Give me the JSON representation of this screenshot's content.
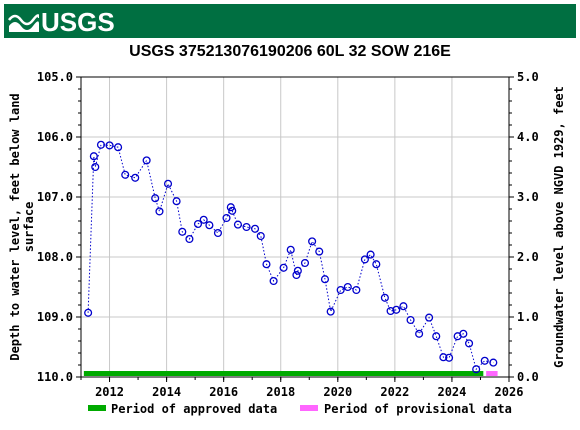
{
  "header": {
    "logo_text": "USGS",
    "background_color": "#006f41"
  },
  "chart_data": {
    "type": "scatter",
    "title": "USGS 375213076190206 60L 32 SOW 216E",
    "ylabel_lines": [
      "Depth to water level, feet below land",
      "surface"
    ],
    "ylabel_right": "Groundwater level above NGVD 1929, feet",
    "xlim": [
      2011.0,
      2026.0
    ],
    "ylim": [
      105.0,
      110.0
    ],
    "y_inverted": true,
    "right_ylim": [
      0.0,
      5.0
    ],
    "x_ticks": [
      "2012",
      "2014",
      "2016",
      "2018",
      "2020",
      "2022",
      "2024",
      "2026"
    ],
    "y_ticks": [
      "105.0",
      "106.0",
      "107.0",
      "108.0",
      "109.0",
      "110.0"
    ],
    "right_y_ticks": [
      "5.0",
      "4.0",
      "3.0",
      "2.0",
      "1.0",
      "0.0"
    ],
    "grid": true,
    "series": [
      {
        "name": "Depth to water level",
        "color": "#0000cc",
        "marker": "circle",
        "line": "dotted",
        "x": [
          2011.25,
          2011.45,
          2011.5,
          2011.7,
          2012.0,
          2012.3,
          2012.55,
          2012.9,
          2013.3,
          2013.6,
          2013.75,
          2014.05,
          2014.35,
          2014.55,
          2014.8,
          2015.1,
          2015.3,
          2015.5,
          2015.8,
          2016.1,
          2016.25,
          2016.3,
          2016.5,
          2016.8,
          2017.1,
          2017.3,
          2017.5,
          2017.75,
          2018.1,
          2018.35,
          2018.55,
          2018.6,
          2018.85,
          2019.1,
          2019.35,
          2019.55,
          2019.75,
          2020.1,
          2020.35,
          2020.65,
          2020.95,
          2021.15,
          2021.35,
          2021.65,
          2021.85,
          2022.05,
          2022.3,
          2022.55,
          2022.85,
          2023.2,
          2023.45,
          2023.7,
          2023.9,
          2024.2,
          2024.4,
          2024.6,
          2024.85,
          2025.15,
          2025.45
        ],
        "values": [
          108.93,
          106.32,
          106.5,
          106.13,
          106.14,
          106.17,
          106.63,
          106.68,
          106.39,
          107.02,
          107.24,
          106.78,
          107.07,
          107.58,
          107.7,
          107.45,
          107.38,
          107.47,
          107.6,
          107.35,
          107.17,
          107.23,
          107.46,
          107.5,
          107.53,
          107.65,
          108.12,
          108.4,
          108.18,
          107.88,
          108.3,
          108.23,
          108.1,
          107.74,
          107.91,
          108.37,
          108.91,
          108.55,
          108.5,
          108.55,
          108.04,
          107.96,
          108.12,
          108.68,
          108.9,
          108.88,
          108.82,
          109.05,
          109.28,
          109.01,
          109.32,
          109.67,
          109.68,
          109.32,
          109.28,
          109.44,
          109.87,
          109.73,
          109.76
        ]
      }
    ],
    "legend": {
      "placement": "bottom",
      "items": [
        {
          "label": "Period of approved data",
          "color": "#00aa00"
        },
        {
          "label": "Period of provisional data",
          "color": "#ff66ff"
        }
      ]
    },
    "periods": {
      "approved": {
        "start": 2011.1,
        "end": 2025.1,
        "color": "#00aa00"
      },
      "provisional": {
        "start": 2025.2,
        "end": 2025.6,
        "color": "#ff66ff"
      }
    }
  }
}
